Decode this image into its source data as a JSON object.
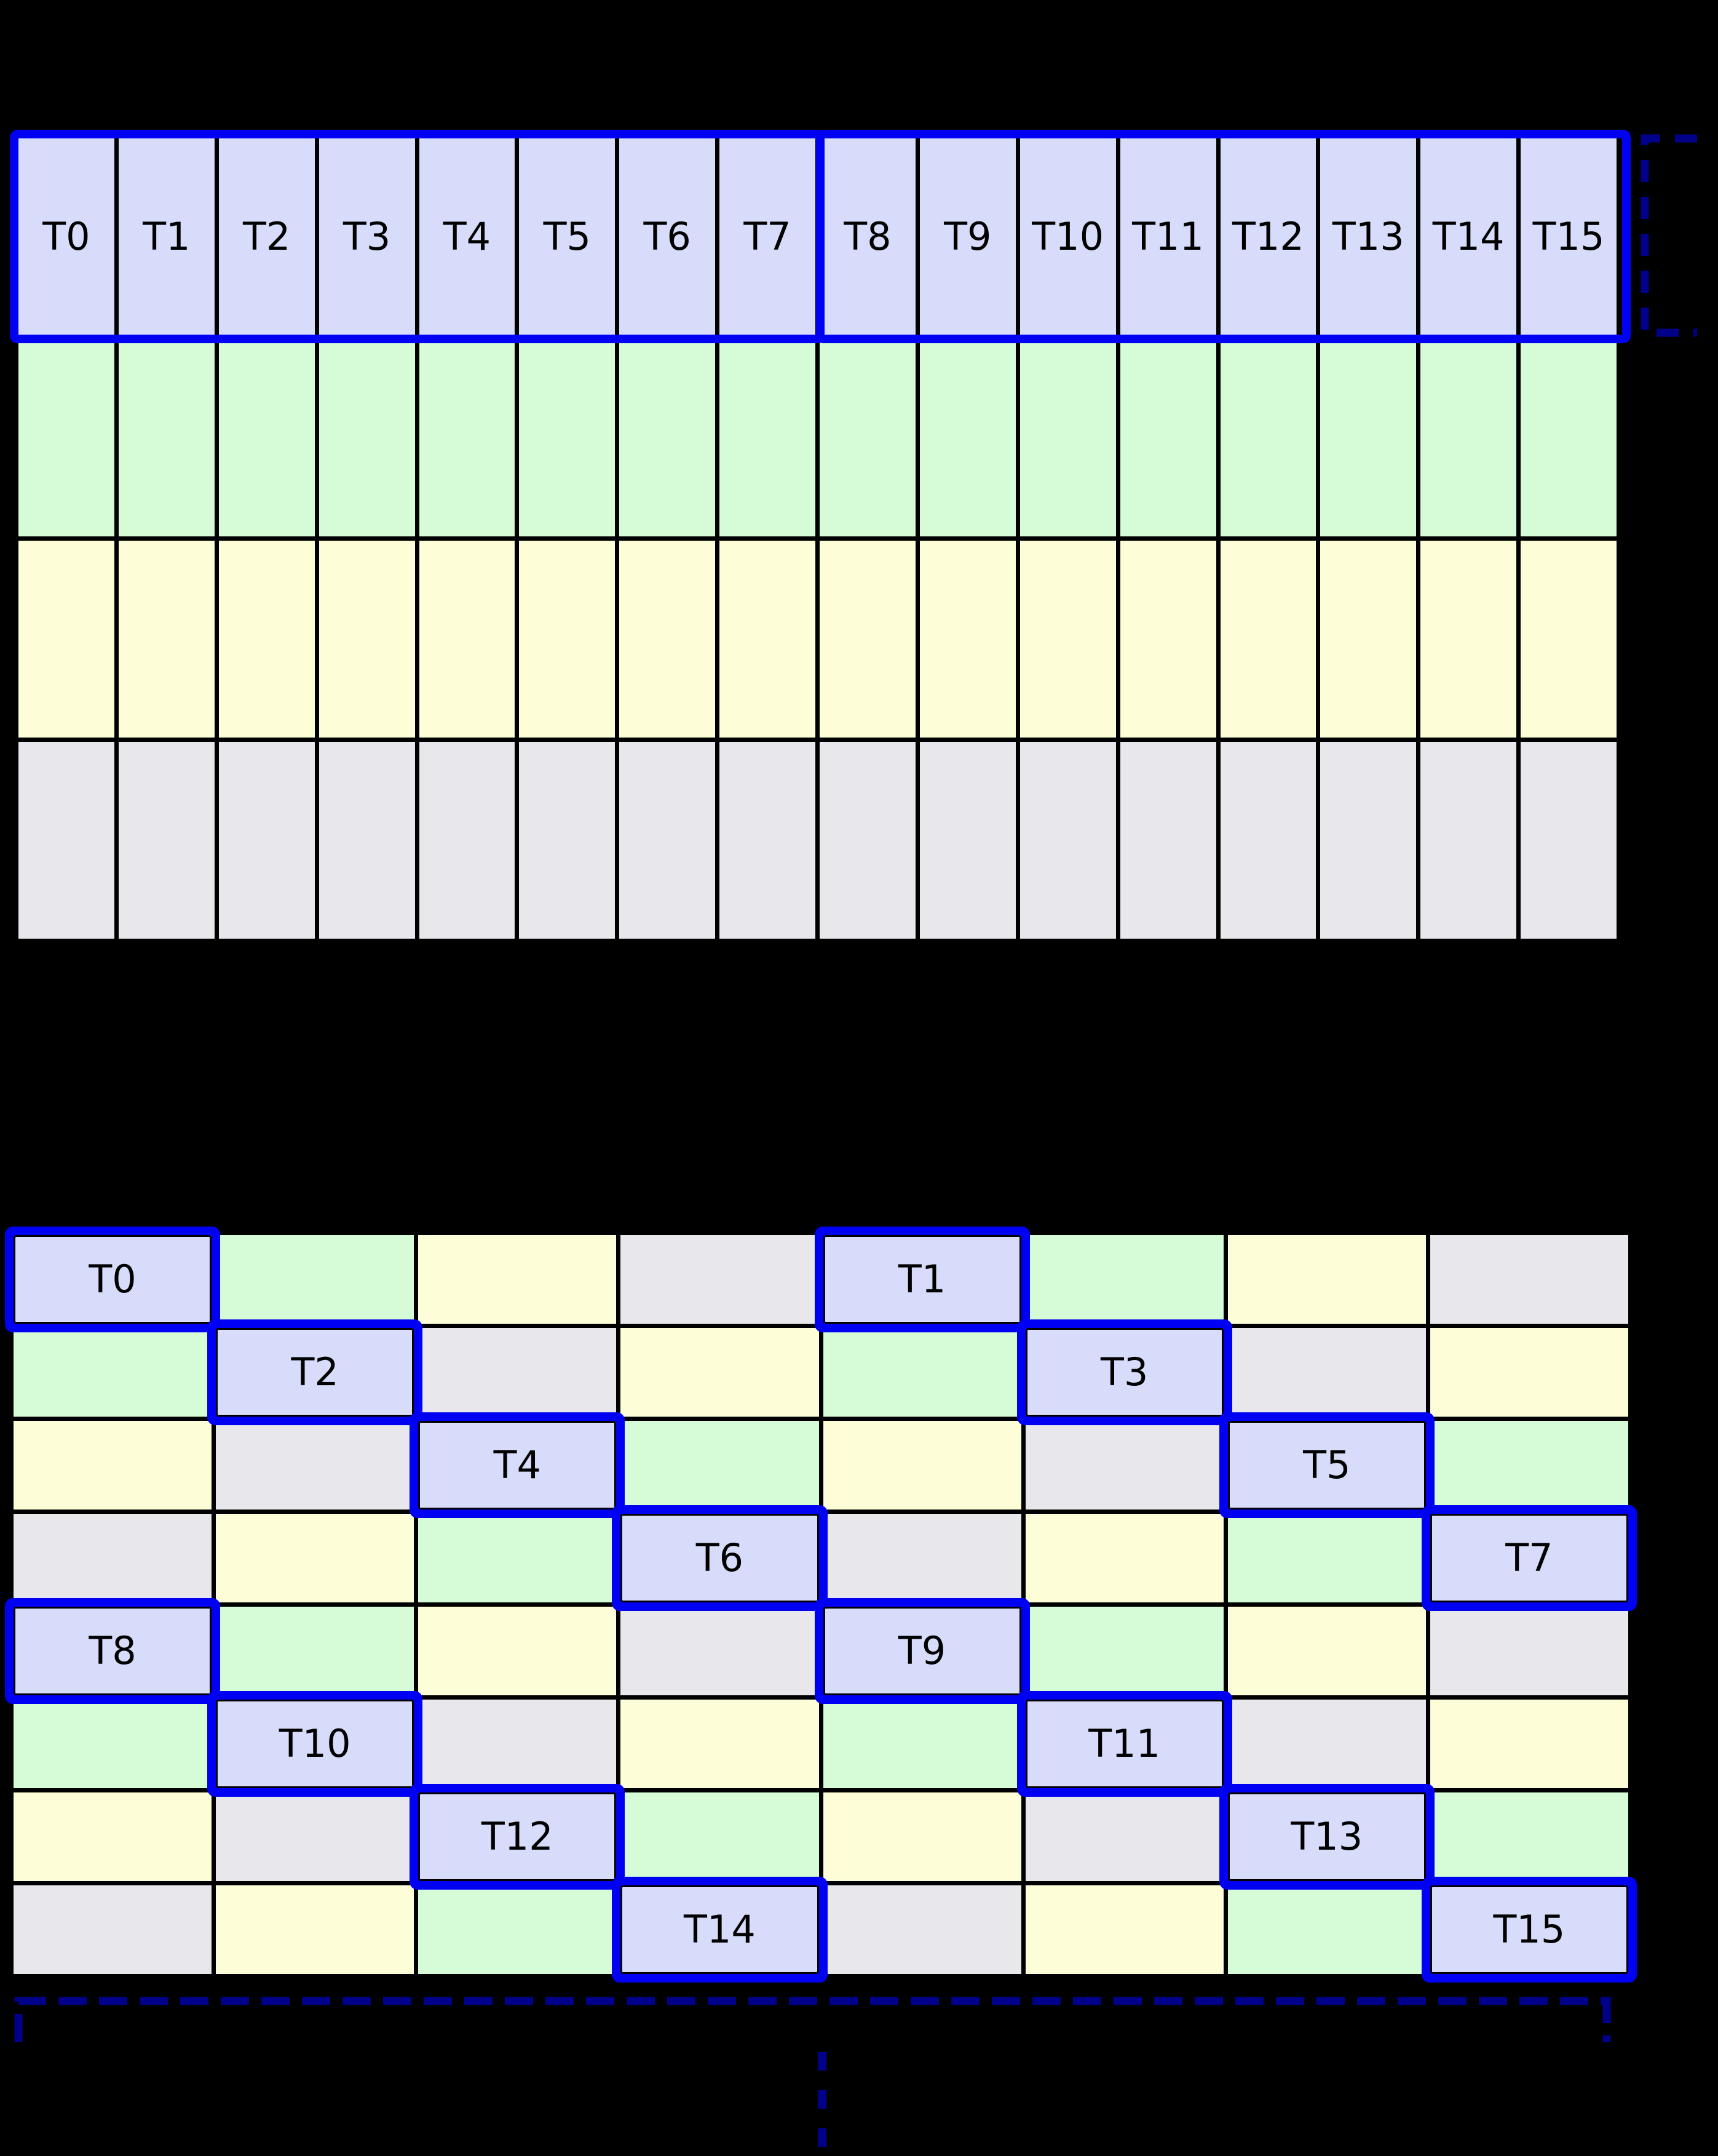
{
  "palette": {
    "cell_blue": "#d7dcfa",
    "cell_green": "#d5fcd6",
    "cell_yellow": "#fdfed8",
    "cell_gray": "#e8e8ec",
    "highlight_blue": "#0000f2",
    "bracket_navy": "#00008b",
    "grid_line_black": "#000000",
    "label_black": "#000000",
    "background": "#000000"
  },
  "top_grid": {
    "columns": 16,
    "group_size": 8,
    "thread_labels": [
      "T0",
      "T1",
      "T2",
      "T3",
      "T4",
      "T5",
      "T6",
      "T7",
      "T8",
      "T9",
      "T10",
      "T11",
      "T12",
      "T13",
      "T14",
      "T15"
    ],
    "plain_rows": [
      "green",
      "yellow",
      "gray"
    ]
  },
  "bottom_grid": {
    "columns": 8,
    "rows": [
      [
        {
          "color": "blue",
          "label": "T0"
        },
        {
          "color": "green"
        },
        {
          "color": "yellow"
        },
        {
          "color": "gray"
        },
        {
          "color": "blue",
          "label": "T1"
        },
        {
          "color": "green"
        },
        {
          "color": "yellow"
        },
        {
          "color": "gray"
        }
      ],
      [
        {
          "color": "green"
        },
        {
          "color": "blue",
          "label": "T2"
        },
        {
          "color": "gray"
        },
        {
          "color": "yellow"
        },
        {
          "color": "green"
        },
        {
          "color": "blue",
          "label": "T3"
        },
        {
          "color": "gray"
        },
        {
          "color": "yellow"
        }
      ],
      [
        {
          "color": "yellow"
        },
        {
          "color": "gray"
        },
        {
          "color": "blue",
          "label": "T4"
        },
        {
          "color": "green"
        },
        {
          "color": "yellow"
        },
        {
          "color": "gray"
        },
        {
          "color": "blue",
          "label": "T5"
        },
        {
          "color": "green"
        }
      ],
      [
        {
          "color": "gray"
        },
        {
          "color": "yellow"
        },
        {
          "color": "green"
        },
        {
          "color": "blue",
          "label": "T6"
        },
        {
          "color": "gray"
        },
        {
          "color": "yellow"
        },
        {
          "color": "green"
        },
        {
          "color": "blue",
          "label": "T7"
        }
      ],
      [
        {
          "color": "blue",
          "label": "T8"
        },
        {
          "color": "green"
        },
        {
          "color": "yellow"
        },
        {
          "color": "gray"
        },
        {
          "color": "blue",
          "label": "T9"
        },
        {
          "color": "green"
        },
        {
          "color": "yellow"
        },
        {
          "color": "gray"
        }
      ],
      [
        {
          "color": "green"
        },
        {
          "color": "blue",
          "label": "T10"
        },
        {
          "color": "gray"
        },
        {
          "color": "yellow"
        },
        {
          "color": "green"
        },
        {
          "color": "blue",
          "label": "T11"
        },
        {
          "color": "gray"
        },
        {
          "color": "yellow"
        }
      ],
      [
        {
          "color": "yellow"
        },
        {
          "color": "gray"
        },
        {
          "color": "blue",
          "label": "T12"
        },
        {
          "color": "green"
        },
        {
          "color": "yellow"
        },
        {
          "color": "gray"
        },
        {
          "color": "blue",
          "label": "T13"
        },
        {
          "color": "green"
        }
      ],
      [
        {
          "color": "gray"
        },
        {
          "color": "yellow"
        },
        {
          "color": "green"
        },
        {
          "color": "blue",
          "label": "T14"
        },
        {
          "color": "gray"
        },
        {
          "color": "yellow"
        },
        {
          "color": "green"
        },
        {
          "color": "blue",
          "label": "T15"
        }
      ]
    ]
  }
}
